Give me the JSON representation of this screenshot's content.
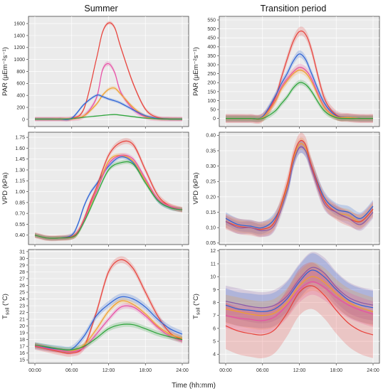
{
  "figure": {
    "x_axis_title": "Time (hh:mm)",
    "x_ticks": [
      "00:00",
      "06:00",
      "12:00",
      "18:00",
      "24:00"
    ],
    "series_colors": {
      "red": "#e8413a",
      "pink": "#e84fa6",
      "orange": "#f0a02c",
      "blue": "#2b62d6",
      "green": "#2ca43a",
      "purple": "#8a5aa8"
    }
  },
  "columns": [
    {
      "title": "Summer"
    },
    {
      "title": "Transition period"
    }
  ],
  "chart_data": [
    {
      "type": "line",
      "panel": "summer-par",
      "column": 0,
      "row": 0,
      "ylabel": "PAR (µEm⁻²s⁻¹)",
      "yticks": [
        0,
        200,
        400,
        600,
        800,
        1000,
        1200,
        1400,
        1600
      ],
      "ylim": [
        -120,
        1720
      ],
      "x": [
        0,
        2,
        4,
        6,
        8,
        10,
        11,
        12,
        13,
        14,
        16,
        18,
        20,
        22,
        24
      ],
      "series": [
        {
          "color": "red",
          "band": 30,
          "values": [
            5,
            5,
            5,
            15,
            180,
            1000,
            1450,
            1610,
            1530,
            1200,
            600,
            170,
            30,
            10,
            5
          ]
        },
        {
          "color": "pink",
          "band": 40,
          "values": [
            5,
            5,
            5,
            10,
            60,
            350,
            820,
            930,
            780,
            450,
            170,
            40,
            10,
            5,
            5
          ]
        },
        {
          "color": "orange",
          "band": 30,
          "values": [
            5,
            5,
            5,
            10,
            60,
            250,
            400,
            500,
            520,
            420,
            200,
            50,
            10,
            5,
            5
          ]
        },
        {
          "color": "blue",
          "band": 25,
          "values": [
            5,
            5,
            5,
            20,
            250,
            400,
            380,
            340,
            310,
            270,
            160,
            60,
            15,
            5,
            5
          ]
        },
        {
          "color": "green",
          "band": 10,
          "values": [
            5,
            5,
            5,
            10,
            35,
            55,
            65,
            75,
            80,
            70,
            45,
            20,
            10,
            5,
            5
          ]
        }
      ]
    },
    {
      "type": "line",
      "panel": "transition-par",
      "column": 1,
      "row": 0,
      "ylabel": "PAR (µEm⁻²s⁻¹)",
      "yticks": [
        0,
        50,
        100,
        150,
        200,
        250,
        300,
        350,
        400,
        450,
        500,
        550
      ],
      "ylim": [
        -45,
        570
      ],
      "x": [
        0,
        2,
        4,
        6,
        8,
        9,
        10,
        11,
        12,
        13,
        14,
        16,
        18,
        20,
        22,
        24
      ],
      "series": [
        {
          "color": "red",
          "band": 25,
          "values": [
            0,
            0,
            0,
            5,
            110,
            220,
            330,
            430,
            485,
            470,
            380,
            120,
            20,
            5,
            0,
            0
          ]
        },
        {
          "color": "blue",
          "band": 20,
          "values": [
            0,
            0,
            0,
            10,
            120,
            190,
            250,
            320,
            360,
            330,
            250,
            90,
            15,
            5,
            0,
            0
          ]
        },
        {
          "color": "pink",
          "band": 20,
          "values": [
            0,
            0,
            0,
            5,
            95,
            170,
            220,
            260,
            285,
            270,
            220,
            70,
            10,
            5,
            0,
            0
          ]
        },
        {
          "color": "orange",
          "band": 20,
          "values": [
            0,
            0,
            0,
            5,
            90,
            160,
            210,
            250,
            270,
            255,
            205,
            65,
            10,
            5,
            0,
            0
          ]
        },
        {
          "color": "green",
          "band": 15,
          "values": [
            0,
            0,
            0,
            0,
            40,
            80,
            120,
            170,
            200,
            190,
            150,
            45,
            5,
            0,
            0,
            0
          ]
        }
      ]
    },
    {
      "type": "line",
      "panel": "summer-vpd",
      "column": 0,
      "row": 1,
      "ylabel": "VPD (kPa)",
      "yticks": [
        0.4,
        0.55,
        0.7,
        0.85,
        1.0,
        1.15,
        1.3,
        1.45,
        1.6,
        1.75
      ],
      "tick_labels": [
        "0.40",
        "0.55",
        "0.70",
        "0.85",
        "1.00",
        "1.15",
        "1.30",
        "1.45",
        "1.60",
        "1.75"
      ],
      "ylim": [
        0.27,
        1.82
      ],
      "x": [
        0,
        2,
        4,
        6,
        7,
        8,
        9,
        10,
        12,
        14,
        16,
        18,
        20,
        22,
        24
      ],
      "series": [
        {
          "color": "blue",
          "band": 0.03,
          "values": [
            0.4,
            0.36,
            0.36,
            0.4,
            0.55,
            0.8,
            0.98,
            1.1,
            1.35,
            1.48,
            1.4,
            1.15,
            0.88,
            0.78,
            0.75
          ]
        },
        {
          "color": "red",
          "band": 0.04,
          "values": [
            0.4,
            0.36,
            0.36,
            0.38,
            0.45,
            0.62,
            0.85,
            1.05,
            1.5,
            1.68,
            1.65,
            1.3,
            0.95,
            0.8,
            0.75
          ]
        },
        {
          "color": "orange",
          "band": 0.03,
          "values": [
            0.4,
            0.36,
            0.36,
            0.37,
            0.43,
            0.6,
            0.8,
            1.0,
            1.42,
            1.5,
            1.42,
            1.15,
            0.9,
            0.8,
            0.75
          ]
        },
        {
          "color": "pink",
          "band": 0.03,
          "values": [
            0.4,
            0.36,
            0.36,
            0.37,
            0.44,
            0.6,
            0.82,
            1.0,
            1.38,
            1.5,
            1.45,
            1.18,
            0.9,
            0.8,
            0.75
          ]
        },
        {
          "color": "green",
          "band": 0.03,
          "values": [
            0.4,
            0.36,
            0.36,
            0.37,
            0.43,
            0.58,
            0.76,
            0.95,
            1.3,
            1.4,
            1.38,
            1.12,
            0.88,
            0.78,
            0.75
          ]
        }
      ]
    },
    {
      "type": "line",
      "panel": "transition-vpd",
      "column": 1,
      "row": 1,
      "ylabel": "VPD (kPa)",
      "yticks": [
        0.05,
        0.1,
        0.15,
        0.2,
        0.25,
        0.3,
        0.35,
        0.4
      ],
      "tick_labels": [
        "0.05",
        "0.10",
        "0.15",
        "0.20",
        "0.25",
        "0.30",
        "0.35",
        "0.40"
      ],
      "ylim": [
        0.045,
        0.41
      ],
      "x": [
        0,
        2,
        4,
        6,
        8,
        10,
        11,
        12,
        13,
        14,
        16,
        18,
        20,
        22,
        24
      ],
      "series": [
        {
          "color": "blue",
          "band": 0.02,
          "values": [
            0.13,
            0.11,
            0.105,
            0.1,
            0.13,
            0.22,
            0.31,
            0.36,
            0.35,
            0.3,
            0.2,
            0.16,
            0.15,
            0.13,
            0.17
          ]
        },
        {
          "color": "orange",
          "band": 0.02,
          "values": [
            0.12,
            0.105,
            0.1,
            0.095,
            0.12,
            0.23,
            0.32,
            0.37,
            0.36,
            0.3,
            0.19,
            0.15,
            0.14,
            0.12,
            0.16
          ]
        },
        {
          "color": "red",
          "band": 0.025,
          "values": [
            0.12,
            0.105,
            0.1,
            0.095,
            0.12,
            0.24,
            0.33,
            0.38,
            0.37,
            0.3,
            0.19,
            0.15,
            0.13,
            0.12,
            0.16
          ]
        },
        {
          "color": "purple",
          "band": 0.02,
          "values": [
            0.12,
            0.1,
            0.1,
            0.09,
            0.11,
            0.22,
            0.31,
            0.36,
            0.35,
            0.29,
            0.18,
            0.15,
            0.13,
            0.11,
            0.15
          ]
        }
      ]
    },
    {
      "type": "line",
      "panel": "summer-tsoil",
      "column": 0,
      "row": 2,
      "ylabel": "T_soil (°C)",
      "yticks": [
        15,
        16,
        17,
        18,
        19,
        20,
        21,
        22,
        23,
        24,
        25,
        26,
        27,
        28,
        29,
        30,
        31
      ],
      "ylim": [
        14.5,
        31.3
      ],
      "x": [
        0,
        2,
        4,
        6,
        8,
        10,
        12,
        14,
        16,
        18,
        20,
        22,
        24
      ],
      "series": [
        {
          "color": "red",
          "band": 0.5,
          "values": [
            17.0,
            16.6,
            16.2,
            16.0,
            17.0,
            22.0,
            28.0,
            29.8,
            28.5,
            25.0,
            21.5,
            19.0,
            18.0
          ]
        },
        {
          "color": "blue",
          "band": 0.5,
          "values": [
            17.1,
            16.8,
            16.6,
            16.6,
            18.5,
            21.5,
            23.2,
            24.3,
            24.0,
            22.8,
            21.0,
            19.6,
            18.8
          ]
        },
        {
          "color": "orange",
          "band": 0.4,
          "values": [
            17.1,
            16.7,
            16.4,
            16.3,
            17.2,
            19.5,
            22.2,
            23.7,
            23.2,
            21.8,
            20.0,
            18.8,
            18.2
          ]
        },
        {
          "color": "pink",
          "band": 0.4,
          "values": [
            17.1,
            16.7,
            16.4,
            16.2,
            16.8,
            18.8,
            21.0,
            22.8,
            22.8,
            21.5,
            19.8,
            18.5,
            17.8
          ]
        },
        {
          "color": "green",
          "band": 0.4,
          "values": [
            17.2,
            16.9,
            16.6,
            16.5,
            17.0,
            18.2,
            19.6,
            20.2,
            20.2,
            19.6,
            18.9,
            18.4,
            18.0
          ]
        }
      ]
    },
    {
      "type": "line",
      "panel": "transition-tsoil",
      "column": 1,
      "row": 2,
      "ylabel": "T_soil (°C)",
      "yticks": [
        4,
        5,
        6,
        7,
        8,
        9,
        10,
        11,
        12
      ],
      "ylim": [
        3.3,
        12.1
      ],
      "x": [
        0,
        2,
        4,
        6,
        8,
        10,
        12,
        14,
        16,
        18,
        20,
        22,
        24
      ],
      "series": [
        {
          "color": "purple",
          "band": 1.2,
          "values": [
            8.1,
            7.9,
            7.7,
            7.6,
            7.8,
            8.5,
            9.8,
            10.7,
            10.3,
            9.2,
            8.4,
            8.0,
            7.8
          ]
        },
        {
          "color": "blue",
          "band": 1.3,
          "values": [
            7.8,
            7.5,
            7.4,
            7.3,
            7.5,
            8.3,
            9.6,
            10.5,
            10.0,
            9.0,
            8.2,
            7.8,
            7.6
          ]
        },
        {
          "color": "orange",
          "band": 1.1,
          "values": [
            7.5,
            7.3,
            7.1,
            7.0,
            7.2,
            8.0,
            9.3,
            10.0,
            9.6,
            8.7,
            8.0,
            7.6,
            7.3
          ]
        },
        {
          "color": "pink",
          "band": 1.0,
          "values": [
            7.0,
            6.8,
            6.7,
            6.6,
            6.9,
            7.8,
            9.0,
            9.6,
            9.2,
            8.4,
            7.8,
            7.4,
            7.1
          ]
        },
        {
          "color": "red",
          "band": 1.8,
          "values": [
            6.2,
            5.8,
            5.6,
            5.5,
            5.9,
            7.2,
            8.8,
            9.3,
            8.6,
            7.4,
            6.4,
            5.8,
            5.5
          ]
        }
      ]
    }
  ]
}
